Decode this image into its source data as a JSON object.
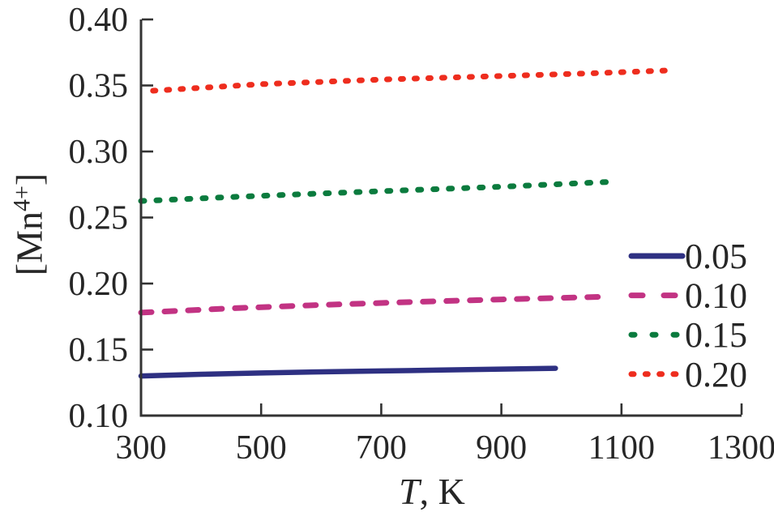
{
  "chart_data": {
    "type": "line",
    "title": "",
    "xlabel": {
      "variable": "T",
      "rest": ", K"
    },
    "ylabel": {
      "open": "[Mn",
      "sup": "4+",
      "close": "]"
    },
    "xlim": [
      300,
      1300
    ],
    "ylim": [
      0.1,
      0.4
    ],
    "x_ticks": [
      300,
      500,
      700,
      900,
      1100,
      1300
    ],
    "y_ticks": [
      0.4,
      0.35,
      0.3,
      0.25,
      0.2,
      0.15,
      0.1
    ],
    "y_tick_decimals": 2,
    "grid": false,
    "legend_position": "right-center",
    "axis_color": "#333333",
    "text_color": "#262626",
    "series": [
      {
        "name": "0.05",
        "color": "#2e3082",
        "style": "solid",
        "points": [
          [
            300,
            0.13
          ],
          [
            400,
            0.1313
          ],
          [
            500,
            0.1323
          ],
          [
            600,
            0.1331
          ],
          [
            700,
            0.1338
          ],
          [
            800,
            0.1345
          ],
          [
            900,
            0.1352
          ],
          [
            990,
            0.1358
          ]
        ]
      },
      {
        "name": "0.10",
        "color": "#c23383",
        "style": "dashed",
        "points": [
          [
            300,
            0.178
          ],
          [
            450,
            0.1812
          ],
          [
            600,
            0.1838
          ],
          [
            750,
            0.186
          ],
          [
            900,
            0.188
          ],
          [
            1070,
            0.19
          ]
        ]
      },
      {
        "name": "0.15",
        "color": "#0b7b3e",
        "style": "dotted",
        "points": [
          [
            300,
            0.2625
          ],
          [
            450,
            0.2655
          ],
          [
            600,
            0.2682
          ],
          [
            750,
            0.2708
          ],
          [
            900,
            0.2733
          ],
          [
            1080,
            0.277
          ]
        ]
      },
      {
        "name": "0.20",
        "color": "#ee2d1e",
        "style": "dotted-fine",
        "points": [
          [
            320,
            0.346
          ],
          [
            500,
            0.351
          ],
          [
            700,
            0.3545
          ],
          [
            900,
            0.3572
          ],
          [
            1050,
            0.3592
          ],
          [
            1185,
            0.3615
          ]
        ]
      }
    ]
  }
}
